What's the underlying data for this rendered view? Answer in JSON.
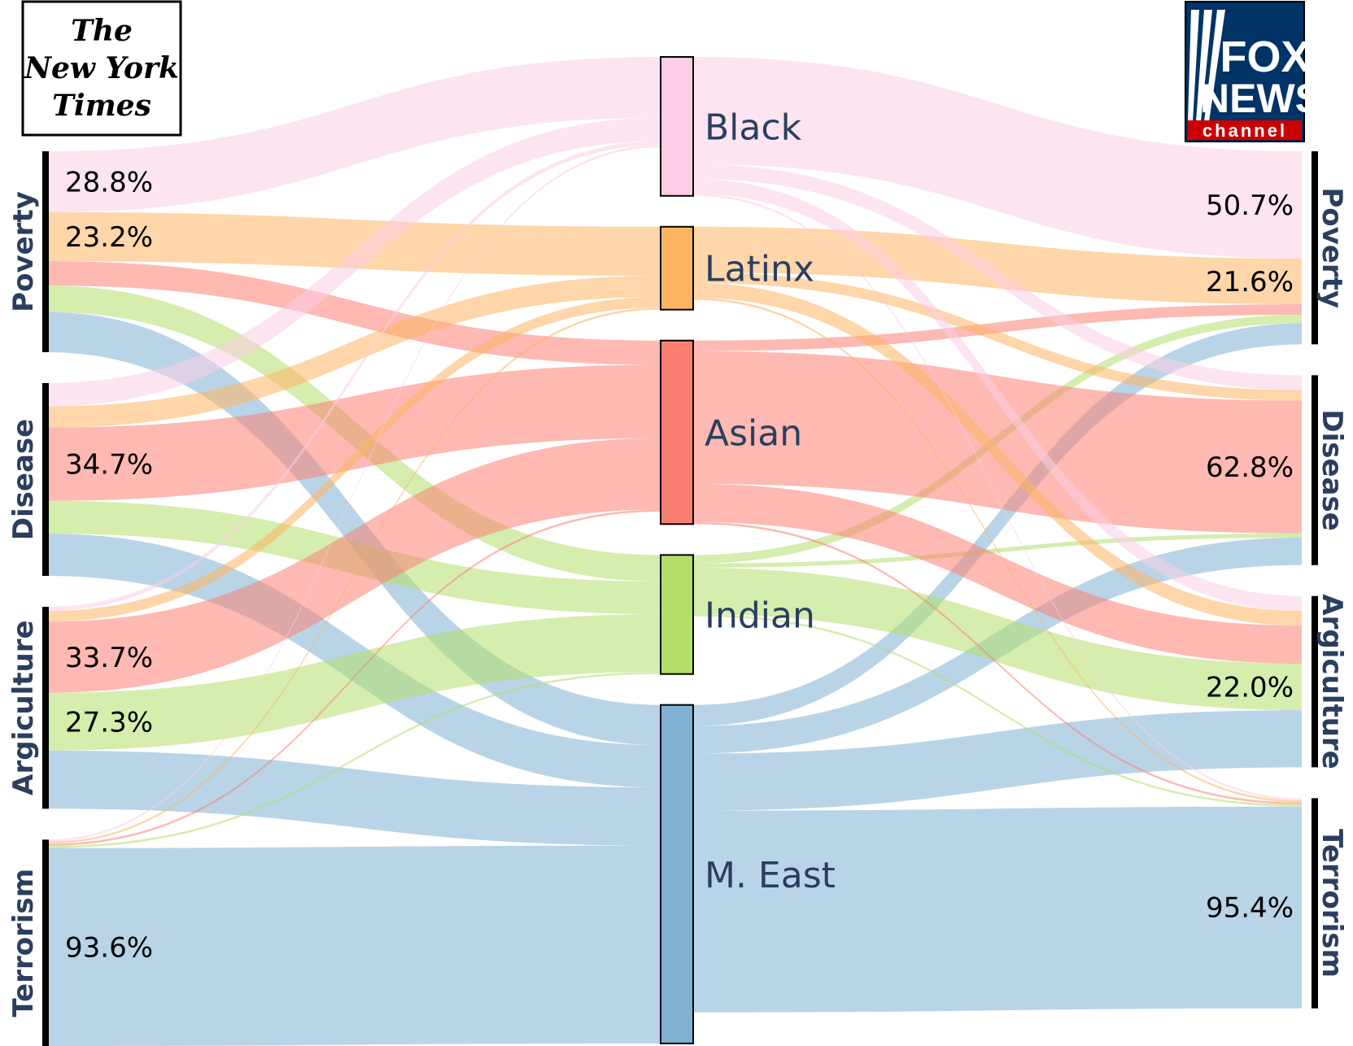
{
  "chart_data": {
    "type": "sankey",
    "left_source": "The New York Times",
    "right_source": "FOX NEWS channel",
    "topics": [
      "Poverty",
      "Disease",
      "Argiculture",
      "Terrorism"
    ],
    "groups": [
      "Black",
      "Latinx",
      "Asian",
      "Indian",
      "M. East"
    ],
    "colors": {
      "Black": "#fccde5",
      "Latinx": "#fdb462",
      "Asian": "#fb8072",
      "Indian": "#b3de69",
      "M. East": "#80b1d3"
    },
    "left_flows": {
      "Poverty": {
        "Black": 28.8,
        "Latinx": 23.2,
        "Asian": 11.5,
        "Indian": 12.5,
        "M. East": 19.0
      },
      "Disease": {
        "Black": 11.0,
        "Latinx": 10.0,
        "Asian": 34.7,
        "Indian": 15.5,
        "M. East": 20.0
      },
      "Argiculture": {
        "Black": 2.0,
        "Latinx": 5.0,
        "Asian": 33.7,
        "Indian": 27.3,
        "M. East": 27.5
      },
      "Terrorism": {
        "Black": 1.0,
        "Latinx": 1.0,
        "Asian": 1.0,
        "Indian": 1.0,
        "M. East": 93.6
      }
    },
    "right_flows": {
      "Poverty": {
        "Black": 50.7,
        "Latinx": 21.6,
        "Asian": 5.0,
        "Indian": 4.0,
        "M. East": 10.0
      },
      "Disease": {
        "Black": 7.0,
        "Latinx": 5.0,
        "Asian": 62.8,
        "Indian": 2.0,
        "M. East": 13.0
      },
      "Argiculture": {
        "Black": 7.0,
        "Latinx": 7.0,
        "Asian": 18.0,
        "Indian": 22.0,
        "M. East": 27.0
      },
      "Terrorism": {
        "Black": 1.0,
        "Latinx": 1.0,
        "Asian": 1.0,
        "Indian": 1.0,
        "M. East": 95.4
      }
    },
    "left_labels": [
      {
        "topic": "Poverty",
        "group": "Black",
        "text": "28.8%"
      },
      {
        "topic": "Poverty",
        "group": "Latinx",
        "text": "23.2%"
      },
      {
        "topic": "Disease",
        "group": "Asian",
        "text": "34.7%"
      },
      {
        "topic": "Argiculture",
        "group": "Asian",
        "text": "33.7%"
      },
      {
        "topic": "Argiculture",
        "group": "Indian",
        "text": "27.3%"
      },
      {
        "topic": "Terrorism",
        "group": "M. East",
        "text": "93.6%"
      }
    ],
    "right_labels": [
      {
        "topic": "Poverty",
        "group": "Black",
        "text": "50.7%"
      },
      {
        "topic": "Poverty",
        "group": "Latinx",
        "text": "21.6%"
      },
      {
        "topic": "Disease",
        "group": "Asian",
        "text": "62.8%"
      },
      {
        "topic": "Argiculture",
        "group": "Indian",
        "text": "22.0%"
      },
      {
        "topic": "Terrorism",
        "group": "M. East",
        "text": "95.4%"
      }
    ]
  },
  "logos": {
    "nyt": {
      "line1": "The",
      "line2": "New York",
      "line3": "Times"
    },
    "fox": {
      "line1": "FOX",
      "line2": "NEWS",
      "line3": "channel"
    }
  }
}
